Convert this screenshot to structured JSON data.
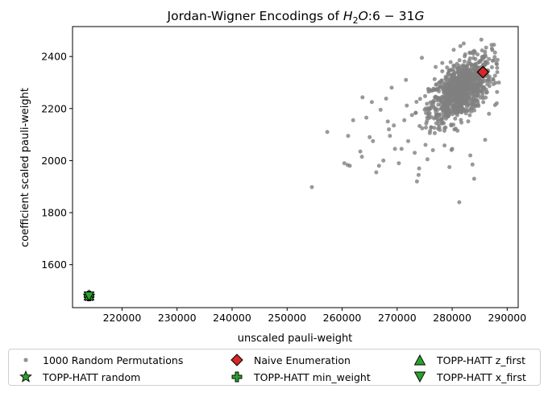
{
  "chart_data": {
    "type": "scatter",
    "title": "Jordan-Wigner Encodings of H₂O:6 − 31G",
    "xlabel": "unscaled pauli-weight",
    "ylabel": "coefficient scaled pauli-weight",
    "xlim": [
      211000,
      292000
    ],
    "ylim": [
      1435,
      2515
    ],
    "xticks": [
      220000,
      230000,
      240000,
      250000,
      260000,
      270000,
      280000,
      290000
    ],
    "xtick_labels": [
      "220000",
      "230000",
      "240000",
      "250000",
      "260000",
      "270000",
      "280000",
      "290000"
    ],
    "yticks": [
      1600,
      1800,
      2000,
      2200,
      2400
    ],
    "ytick_labels": [
      "1600",
      "1800",
      "2000",
      "2200",
      "2400"
    ],
    "grid": false,
    "legend_position": "below plot, 3 columns",
    "random_cloud": {
      "name": "1000 Random Permutations",
      "count": 1000,
      "color": "#808080",
      "center": [
        281500,
        2270
      ],
      "x_range": [
        254500,
        288500
      ],
      "y_range": [
        1840,
        2465
      ]
    },
    "series": [
      {
        "name": "1000 Random Permutations",
        "marker": "circle",
        "color": "#808080",
        "points": [
          [
            254500,
            1898
          ],
          [
            257300,
            2110
          ],
          [
            260400,
            1990
          ],
          [
            261000,
            1983
          ],
          [
            261400,
            1980
          ],
          [
            261100,
            2095
          ],
          [
            262000,
            2155
          ],
          [
            263300,
            2035
          ],
          [
            263700,
            2243
          ],
          [
            263600,
            2015
          ],
          [
            264400,
            2165
          ],
          [
            265000,
            2090
          ],
          [
            265600,
            2075
          ],
          [
            265400,
            2225
          ],
          [
            266200,
            1955
          ],
          [
            266700,
            1980
          ],
          [
            267000,
            2195
          ],
          [
            267500,
            2000
          ],
          [
            268000,
            2238
          ],
          [
            268300,
            2150
          ],
          [
            268500,
            2120
          ],
          [
            268700,
            2095
          ],
          [
            269000,
            2280
          ],
          [
            269400,
            2135
          ],
          [
            269600,
            2045
          ],
          [
            270300,
            1990
          ],
          [
            270800,
            2045
          ],
          [
            271300,
            2155
          ],
          [
            271600,
            2310
          ],
          [
            272000,
            2075
          ],
          [
            272700,
            2175
          ],
          [
            273200,
            2030
          ],
          [
            273600,
            1920
          ],
          [
            273900,
            1945
          ],
          [
            274000,
            1970
          ],
          [
            274500,
            2395
          ],
          [
            275500,
            2005
          ],
          [
            276500,
            2040
          ],
          [
            276000,
            2115
          ],
          [
            277000,
            2360
          ],
          [
            278200,
            2375
          ],
          [
            279500,
            1975
          ],
          [
            280000,
            2045
          ],
          [
            281300,
            1840
          ],
          [
            281500,
            2440
          ],
          [
            282100,
            2450
          ],
          [
            283300,
            2020
          ],
          [
            283700,
            1985
          ],
          [
            284000,
            1930
          ],
          [
            285300,
            2465
          ],
          [
            286000,
            2080
          ],
          [
            286700,
            2180
          ],
          [
            287300,
            2425
          ],
          [
            287600,
            2445
          ],
          [
            287800,
            2415
          ],
          [
            288100,
            2220
          ],
          [
            288200,
            2340
          ],
          [
            288500,
            2300
          ]
        ]
      },
      {
        "name": "Naive Enumeration",
        "marker": "diamond",
        "color": "#d62728",
        "points": [
          [
            285600,
            2340
          ]
        ]
      },
      {
        "name": "TOPP-HATT random",
        "marker": "star",
        "color": "#2ca02c",
        "points": [
          [
            214000,
            1480
          ]
        ]
      },
      {
        "name": "TOPP-HATT min_weight",
        "marker": "plus",
        "color": "#2ca02c",
        "points": [
          [
            214000,
            1480
          ]
        ]
      },
      {
        "name": "TOPP-HATT z_first",
        "marker": "triangle-up",
        "color": "#2ca02c",
        "points": [
          [
            214000,
            1480
          ]
        ]
      },
      {
        "name": "TOPP-HATT x_first",
        "marker": "triangle-down",
        "color": "#2ca02c",
        "points": [
          [
            214000,
            1480
          ]
        ]
      }
    ]
  },
  "legend": {
    "random_label": "1000 Random Permutations",
    "naive_label": "Naive Enumeration",
    "z_first_label": "TOPP-HATT z_first",
    "random_topp_label": "TOPP-HATT random",
    "min_weight_label": "TOPP-HATT min_weight",
    "x_first_label": "TOPP-HATT x_first"
  }
}
